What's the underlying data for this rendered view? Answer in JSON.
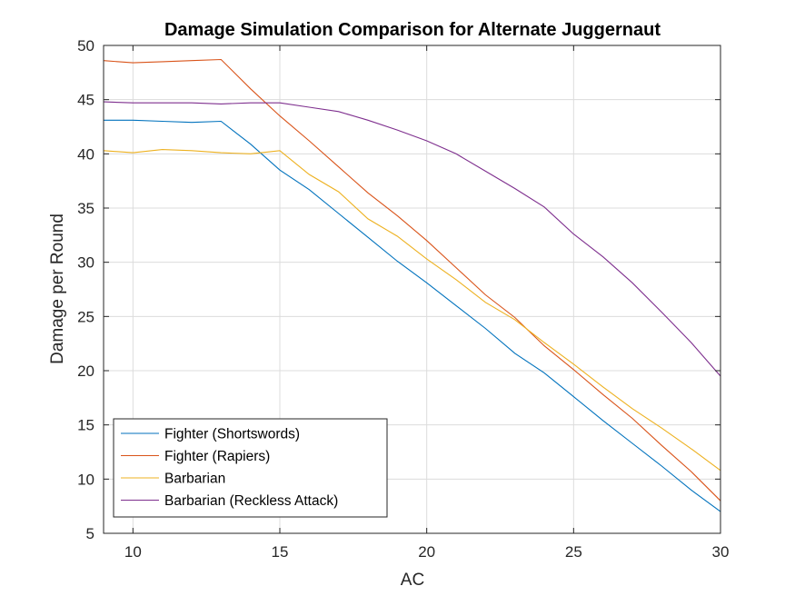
{
  "chart_data": {
    "type": "line",
    "title": "Damage Simulation Comparison for Alternate Juggernaut",
    "xlabel": "AC",
    "ylabel": "Damage per Round",
    "xlim": [
      9,
      30
    ],
    "ylim": [
      5,
      50
    ],
    "xticks": [
      10,
      15,
      20,
      25,
      30
    ],
    "yticks": [
      5,
      10,
      15,
      20,
      25,
      30,
      35,
      40,
      45,
      50
    ],
    "grid": true,
    "legend_location": "bottom-left",
    "x": [
      9,
      10,
      11,
      12,
      13,
      14,
      15,
      16,
      17,
      18,
      19,
      20,
      21,
      22,
      23,
      24,
      25,
      26,
      27,
      28,
      29,
      30
    ],
    "series": [
      {
        "name": "Fighter (Shortswords)",
        "color": "#0072BD",
        "values": [
          43.1,
          43.1,
          43.0,
          42.9,
          43.0,
          40.9,
          38.5,
          36.7,
          34.5,
          32.3,
          30.1,
          28.1,
          26.0,
          23.9,
          21.6,
          19.8,
          17.6,
          15.4,
          13.3,
          11.2,
          9.0,
          7.0
        ]
      },
      {
        "name": "Fighter (Rapiers)",
        "color": "#D95319",
        "values": [
          48.6,
          48.4,
          48.5,
          48.6,
          48.7,
          46.0,
          43.5,
          41.2,
          38.8,
          36.4,
          34.3,
          32.0,
          29.5,
          27.0,
          24.9,
          22.3,
          20.1,
          17.8,
          15.6,
          13.1,
          10.7,
          8.0
        ]
      },
      {
        "name": "Barbarian",
        "color": "#EDB120",
        "values": [
          40.3,
          40.1,
          40.4,
          40.3,
          40.1,
          40.0,
          40.3,
          38.1,
          36.5,
          34.0,
          32.4,
          30.3,
          28.4,
          26.3,
          24.7,
          22.6,
          20.6,
          18.5,
          16.5,
          14.7,
          12.8,
          10.8
        ]
      },
      {
        "name": "Barbarian (Reckless Attack)",
        "color": "#7E2F8E",
        "values": [
          44.8,
          44.7,
          44.7,
          44.7,
          44.6,
          44.7,
          44.7,
          44.3,
          43.9,
          43.1,
          42.2,
          41.2,
          40.0,
          38.4,
          36.8,
          35.1,
          32.6,
          30.5,
          28.1,
          25.4,
          22.6,
          19.5
        ]
      }
    ]
  }
}
